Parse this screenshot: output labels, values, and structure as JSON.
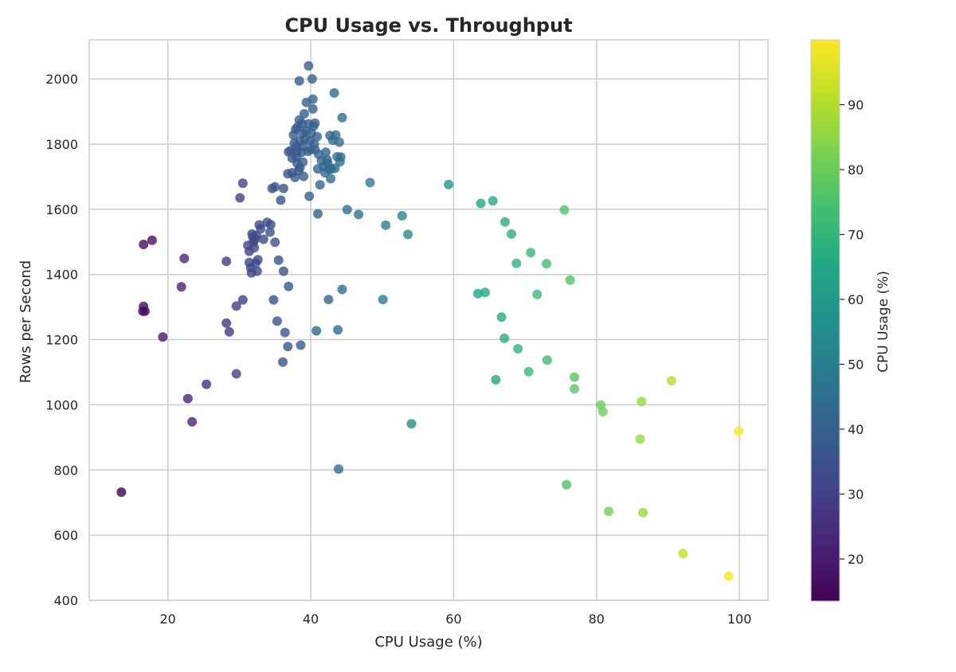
{
  "chart_data": {
    "type": "scatter",
    "title": "CPU Usage vs. Throughput",
    "xlabel": "CPU Usage (%)",
    "ylabel": "Rows per Second",
    "xlim": [
      9,
      104
    ],
    "ylim": [
      400,
      2120
    ],
    "xticks": [
      20,
      40,
      60,
      80,
      100
    ],
    "yticks": [
      400,
      600,
      800,
      1000,
      1200,
      1400,
      1600,
      1800,
      2000
    ],
    "grid": true,
    "colorbar": {
      "label": "CPU Usage (%)",
      "colormap": "viridis",
      "range": [
        13.5,
        100
      ],
      "ticks": [
        20,
        30,
        40,
        50,
        60,
        70,
        80,
        90
      ]
    },
    "colors": {
      "grid": "#cccccc",
      "axes_edge": "#cccccc",
      "text": "#262626",
      "title": "#262626",
      "marker_alpha": 0.8
    },
    "series": [
      {
        "points": [
          [
            13.5,
            732
          ],
          [
            16.5,
            1287
          ],
          [
            16.6,
            1302
          ],
          [
            16.6,
            1492
          ],
          [
            16.8,
            1287
          ],
          [
            17.8,
            1505
          ],
          [
            19.3,
            1208
          ],
          [
            21.9,
            1362
          ],
          [
            22.3,
            1449
          ],
          [
            22.8,
            1019
          ],
          [
            23.4,
            948
          ],
          [
            25.4,
            1063
          ],
          [
            28.2,
            1251
          ],
          [
            28.2,
            1440
          ],
          [
            28.6,
            1224
          ],
          [
            29.6,
            1095
          ],
          [
            29.6,
            1303
          ],
          [
            30.1,
            1635
          ],
          [
            30.5,
            1680
          ],
          [
            30.5,
            1322
          ],
          [
            31.2,
            1489
          ],
          [
            31.4,
            1471
          ],
          [
            31.4,
            1437
          ],
          [
            31.6,
            1420
          ],
          [
            31.7,
            1405
          ],
          [
            31.8,
            1524
          ],
          [
            31.9,
            1515
          ],
          [
            32.0,
            1500
          ],
          [
            32.1,
            1482
          ],
          [
            32.2,
            1508
          ],
          [
            32.3,
            1435
          ],
          [
            32.4,
            1519
          ],
          [
            32.5,
            1410
          ],
          [
            32.6,
            1445
          ],
          [
            32.8,
            1552
          ],
          [
            33.0,
            1540
          ],
          [
            33.4,
            1508
          ],
          [
            33.9,
            1560
          ],
          [
            34.3,
            1530
          ],
          [
            34.4,
            1553
          ],
          [
            34.6,
            1664
          ],
          [
            34.8,
            1322
          ],
          [
            35.0,
            1499
          ],
          [
            35.0,
            1669
          ],
          [
            35.3,
            1257
          ],
          [
            35.5,
            1444
          ],
          [
            35.8,
            1628
          ],
          [
            36.1,
            1131
          ],
          [
            36.2,
            1410
          ],
          [
            36.2,
            1664
          ],
          [
            36.4,
            1222
          ],
          [
            36.8,
            1179
          ],
          [
            36.8,
            1709
          ],
          [
            36.9,
            1776
          ],
          [
            36.9,
            1363
          ],
          [
            37.2,
            1780
          ],
          [
            37.4,
            1757
          ],
          [
            37.4,
            1712
          ],
          [
            37.6,
            1828
          ],
          [
            37.7,
            1803
          ],
          [
            37.8,
            1698
          ],
          [
            37.9,
            1846
          ],
          [
            38.0,
            1792
          ],
          [
            38.0,
            1760
          ],
          [
            38.1,
            1778
          ],
          [
            38.1,
            1741
          ],
          [
            38.2,
            1853
          ],
          [
            38.3,
            1718
          ],
          [
            38.4,
            1994
          ],
          [
            38.4,
            1874
          ],
          [
            38.5,
            1810
          ],
          [
            38.5,
            1728
          ],
          [
            38.6,
            1183
          ],
          [
            38.7,
            1775
          ],
          [
            38.8,
            1863
          ],
          [
            38.9,
            1833
          ],
          [
            38.9,
            1795
          ],
          [
            38.9,
            1745
          ],
          [
            39.0,
            1701
          ],
          [
            39.1,
            1893
          ],
          [
            39.2,
            1816
          ],
          [
            39.3,
            1840
          ],
          [
            39.4,
            1928
          ],
          [
            39.6,
            1778
          ],
          [
            39.7,
            2040
          ],
          [
            39.7,
            1862
          ],
          [
            39.8,
            1640
          ],
          [
            39.9,
            1810
          ],
          [
            40.0,
            1783
          ],
          [
            40.1,
            1834
          ],
          [
            40.2,
            2000
          ],
          [
            40.3,
            1938
          ],
          [
            40.3,
            1908
          ],
          [
            40.4,
            1855
          ],
          [
            40.5,
            1800
          ],
          [
            40.6,
            1864
          ],
          [
            40.6,
            1783
          ],
          [
            40.8,
            1227
          ],
          [
            40.9,
            1823
          ],
          [
            41.0,
            1586
          ],
          [
            41.0,
            1724
          ],
          [
            41.1,
            1769
          ],
          [
            41.3,
            1675
          ],
          [
            41.5,
            1749
          ],
          [
            41.8,
            1731
          ],
          [
            42.0,
            1712
          ],
          [
            42.1,
            1775
          ],
          [
            42.3,
            1752
          ],
          [
            42.4,
            1741
          ],
          [
            42.5,
            1323
          ],
          [
            42.6,
            1722
          ],
          [
            42.7,
            1826
          ],
          [
            42.8,
            1694
          ],
          [
            42.9,
            1724
          ],
          [
            43.1,
            1812
          ],
          [
            43.3,
            1957
          ],
          [
            43.4,
            1726
          ],
          [
            43.5,
            1828
          ],
          [
            43.7,
            1761
          ],
          [
            43.8,
            1230
          ],
          [
            43.9,
            803
          ],
          [
            44.0,
            1806
          ],
          [
            44.1,
            1746
          ],
          [
            44.2,
            1760
          ],
          [
            44.4,
            1881
          ],
          [
            44.4,
            1354
          ],
          [
            45.1,
            1599
          ],
          [
            46.7,
            1584
          ],
          [
            48.3,
            1682
          ],
          [
            50.1,
            1323
          ],
          [
            50.5,
            1551
          ],
          [
            52.8,
            1580
          ],
          [
            53.6,
            1523
          ],
          [
            54.1,
            942
          ],
          [
            59.3,
            1676
          ],
          [
            63.4,
            1341
          ],
          [
            63.8,
            1618
          ],
          [
            64.4,
            1345
          ],
          [
            65.5,
            1626
          ],
          [
            65.9,
            1077
          ],
          [
            66.7,
            1269
          ],
          [
            67.1,
            1204
          ],
          [
            67.2,
            1561
          ],
          [
            68.1,
            1524
          ],
          [
            68.8,
            1434
          ],
          [
            69.0,
            1172
          ],
          [
            70.5,
            1102
          ],
          [
            70.8,
            1467
          ],
          [
            71.7,
            1339
          ],
          [
            73.0,
            1433
          ],
          [
            73.1,
            1137
          ],
          [
            75.5,
            1598
          ],
          [
            75.8,
            755
          ],
          [
            76.3,
            1383
          ],
          [
            76.9,
            1085
          ],
          [
            76.9,
            1049
          ],
          [
            80.6,
            999
          ],
          [
            80.9,
            979
          ],
          [
            81.7,
            673
          ],
          [
            86.1,
            895
          ],
          [
            86.3,
            1010
          ],
          [
            86.5,
            669
          ],
          [
            90.5,
            1074
          ],
          [
            92.1,
            544
          ],
          [
            98.5,
            474
          ],
          [
            99.9,
            919
          ]
        ]
      }
    ]
  }
}
